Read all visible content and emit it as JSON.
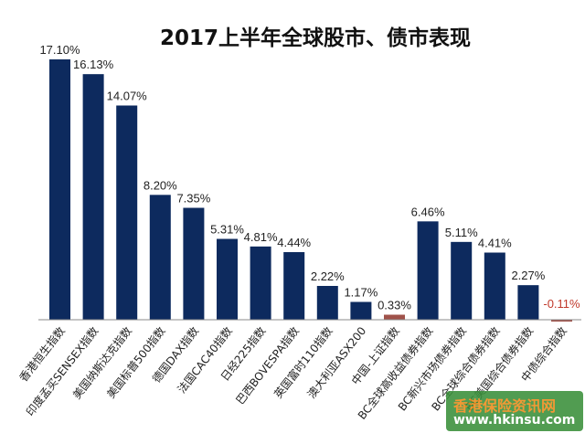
{
  "chart_data": {
    "type": "bar",
    "title": "2017上半年全球股市、债市表现",
    "xlabel": "",
    "ylabel": "",
    "ylim": [
      -0.5,
      17.1
    ],
    "grid": false,
    "legend": "none",
    "categories": [
      "香港恒生指数",
      "印度孟买SENSEX指数",
      "美国纳斯达克指数",
      "美国标普500指数",
      "德国DAX指数",
      "法国CAC40指数",
      "日经225指数",
      "巴西BOVESPA指数",
      "英国富时110指数",
      "澳大利亚ASX200",
      "中国-上证指数",
      "BC全球高收益债券指数",
      "BC新兴市场债券指数",
      "BC全球综合债券指数",
      "BC美国综合债券指数",
      "中债综合指数"
    ],
    "values": [
      17.1,
      16.13,
      14.07,
      8.2,
      7.35,
      5.31,
      4.81,
      4.44,
      2.22,
      1.17,
      0.33,
      6.46,
      5.11,
      4.41,
      2.27,
      -0.11
    ],
    "value_labels": [
      "17.10%",
      "16.13%",
      "14.07%",
      "8.20%",
      "7.35%",
      "5.31%",
      "4.81%",
      "4.44%",
      "2.22%",
      "1.17%",
      "0.33%",
      "6.46%",
      "5.11%",
      "4.41%",
      "2.27%",
      "-0.11%"
    ],
    "colors": {
      "bar": "#0d2a5e",
      "highlight": "#a0524a",
      "negative_label": "#c0392b",
      "axis": "#888888",
      "text": "#222222"
    },
    "highlight_indices": [
      10,
      15
    ]
  },
  "watermark": {
    "line1": "香港保险资讯网",
    "line2": "www.hkinsu.com",
    "color1": "#f08c1a",
    "color2": "#ffffff",
    "bg": "#3a8f3a"
  }
}
